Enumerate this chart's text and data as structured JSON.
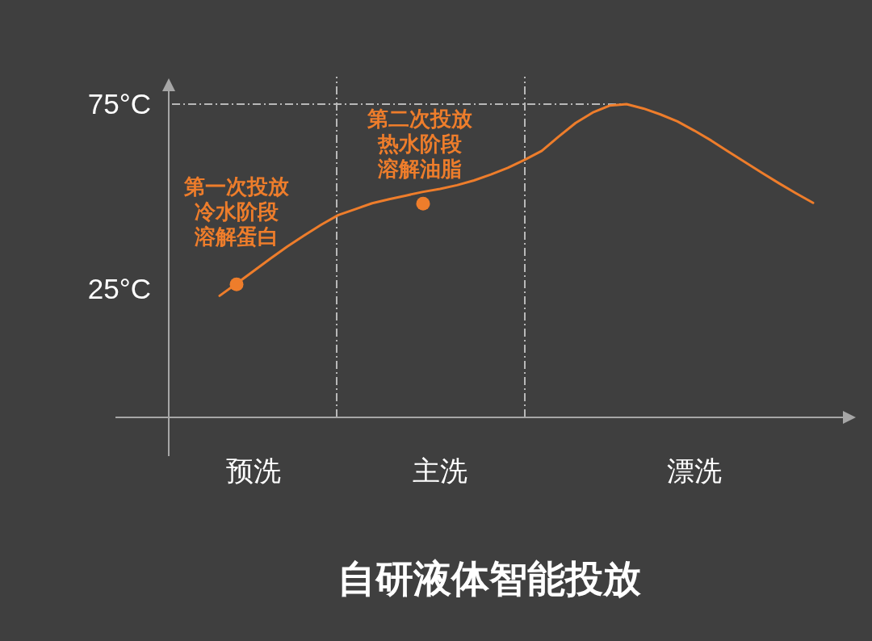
{
  "chart_data": {
    "type": "line",
    "title": "自研液体智能投放",
    "categories": [
      null,
      null,
      null,
      null,
      null,
      "预洗",
      null,
      null,
      null,
      null,
      null,
      null,
      null,
      null,
      null,
      null,
      "主洗",
      null,
      null,
      null,
      null,
      null,
      null,
      null,
      null,
      null,
      null,
      null,
      null,
      null,
      null,
      "漂洗",
      null,
      null,
      null,
      null,
      null,
      null,
      null,
      null,
      null
    ],
    "ylim": [
      -10,
      82
    ],
    "yticks": [
      {
        "value": 25,
        "label": "25°C"
      },
      {
        "value": 75,
        "label": "75°C"
      }
    ],
    "series": [
      {
        "color": "#ee7d2b",
        "values": [
          null,
          null,
          null,
          23.0,
          26.3,
          29.7,
          33.1,
          36.4,
          39.4,
          42.3,
          44.9,
          46.5,
          48.1,
          49.2,
          50.2,
          51.2,
          52.0,
          53.0,
          54.3,
          55.9,
          57.7,
          59.9,
          62.3,
          66.2,
          69.9,
          72.7,
          74.6,
          75.0,
          73.8,
          72.2,
          70.3,
          67.8,
          65.1,
          62.1,
          59.2,
          56.3,
          53.5,
          50.8,
          48.2,
          null,
          null
        ]
      },
      {
        "type": "scatter",
        "color": "#ee7d2b",
        "marker": "circle",
        "values": [
          null,
          null,
          null,
          null,
          26.1,
          null,
          null,
          null,
          null,
          null,
          null,
          null,
          null,
          null,
          null,
          48.0,
          null,
          null,
          null,
          null,
          null,
          null,
          null,
          null,
          null,
          null,
          null,
          null,
          null,
          null,
          null,
          null,
          null,
          null,
          null,
          null,
          null,
          null,
          null,
          null,
          null
        ]
      }
    ],
    "ref_lines": [
      {
        "axis": "y",
        "value": 75,
        "line_style": "dashed"
      }
    ],
    "annotations": [
      {
        "text": "第一次投放冷水阶段溶解蛋白",
        "y": 26.1
      },
      {
        "text": "第二次投放热水阶段溶解油脂",
        "y": 48.0
      }
    ]
  }
}
